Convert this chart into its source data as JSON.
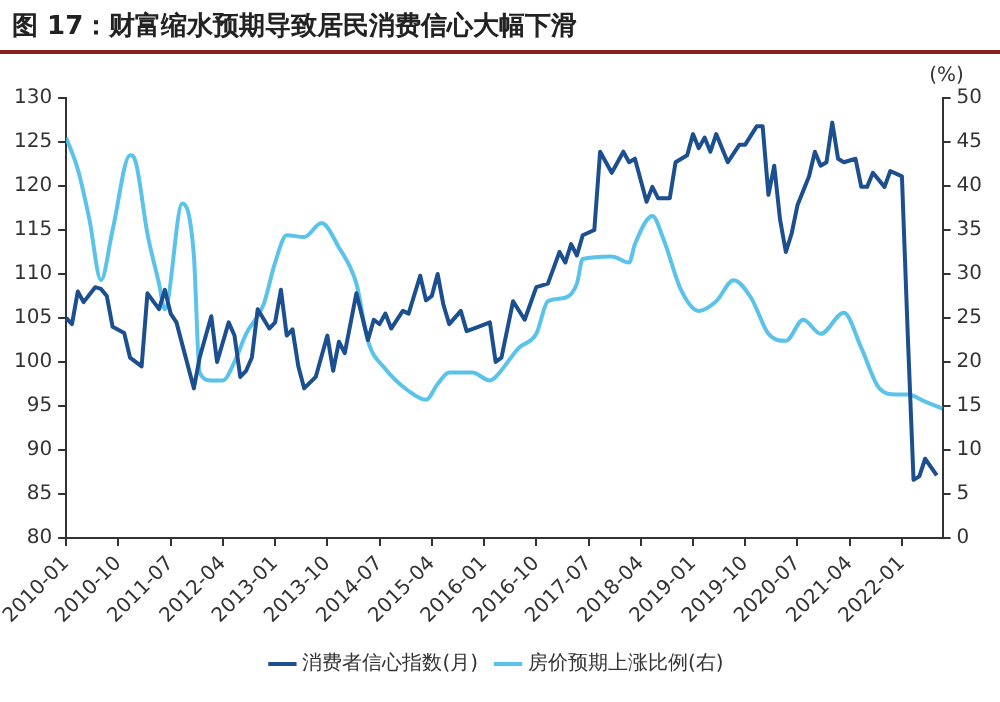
{
  "chart_data": {
    "type": "line",
    "title": "图 17：财富缩水预期导致居民消费信心大幅下滑",
    "y2label": "(%)",
    "xlim": [
      "2010-01",
      "2022-08"
    ],
    "xticks": [
      "2010-01",
      "2010-10",
      "2011-07",
      "2012-04",
      "2013-01",
      "2013-10",
      "2014-07",
      "2015-04",
      "2016-01",
      "2016-10",
      "2017-07",
      "2018-04",
      "2019-01",
      "2019-10",
      "2020-07",
      "2021-04",
      "2022-01"
    ],
    "ylim": [
      80,
      130
    ],
    "yticks": [
      80,
      85,
      90,
      95,
      100,
      105,
      110,
      115,
      120,
      125,
      130
    ],
    "y2lim": [
      0,
      50
    ],
    "y2ticks": [
      0,
      5,
      10,
      15,
      20,
      25,
      30,
      35,
      40,
      45,
      50
    ],
    "grid": false,
    "legend": "bottom",
    "marker": "none",
    "line_style": "solid",
    "series": [
      {
        "name": "消费者信心指数(月)",
        "color": "#1c4f8f",
        "x": [
          "2010-01",
          "2010-02",
          "2010-03",
          "2010-04",
          "2010-06",
          "2010-07",
          "2010-08",
          "2010-09",
          "2010-11",
          "2010-12",
          "2011-02",
          "2011-03",
          "2011-05",
          "2011-06",
          "2011-07",
          "2011-08",
          "2011-09",
          "2011-11",
          "2011-12",
          "2012-02",
          "2012-03",
          "2012-05",
          "2012-06",
          "2012-07",
          "2012-08",
          "2012-09",
          "2012-10",
          "2012-12",
          "2013-01",
          "2013-02",
          "2013-03",
          "2013-04",
          "2013-05",
          "2013-06",
          "2013-08",
          "2013-10",
          "2013-11",
          "2013-12",
          "2014-01",
          "2014-03",
          "2014-05",
          "2014-06",
          "2014-07",
          "2014-08",
          "2014-09",
          "2014-11",
          "2014-12",
          "2015-02",
          "2015-03",
          "2015-04",
          "2015-05",
          "2015-06",
          "2015-07",
          "2015-09",
          "2015-10",
          "2015-12",
          "2016-02",
          "2016-03",
          "2016-04",
          "2016-06",
          "2016-08",
          "2016-10",
          "2016-12",
          "2017-02",
          "2017-03",
          "2017-04",
          "2017-05",
          "2017-06",
          "2017-08",
          "2017-09",
          "2017-11",
          "2017-12",
          "2018-01",
          "2018-02",
          "2018-03",
          "2018-05",
          "2018-06",
          "2018-07",
          "2018-09",
          "2018-10",
          "2018-12",
          "2019-01",
          "2019-02",
          "2019-03",
          "2019-04",
          "2019-05",
          "2019-07",
          "2019-09",
          "2019-10",
          "2019-12",
          "2020-01",
          "2020-02",
          "2020-03",
          "2020-04",
          "2020-05",
          "2020-06",
          "2020-07",
          "2020-09",
          "2020-10",
          "2020-11",
          "2020-12",
          "2021-01",
          "2021-02",
          "2021-03",
          "2021-05",
          "2021-06",
          "2021-07",
          "2021-08",
          "2021-10",
          "2021-11",
          "2022-01",
          "2022-02",
          "2022-03",
          "2022-04",
          "2022-05",
          "2022-07"
        ],
        "values": [
          105,
          104.3,
          108,
          106.8,
          108.5,
          108.3,
          107.5,
          104,
          103.3,
          100.5,
          99.5,
          107.8,
          106,
          108.2,
          105.5,
          104.5,
          102,
          97,
          100.5,
          105.2,
          100,
          104.5,
          103,
          98.3,
          99,
          100.5,
          106,
          103.8,
          104.5,
          108.2,
          103,
          103.7,
          99.5,
          97,
          98.3,
          103,
          99,
          102.3,
          101,
          107.8,
          102.5,
          104.8,
          104.3,
          105.5,
          103.8,
          105.8,
          105.5,
          109.8,
          107,
          107.5,
          110,
          106.5,
          104.3,
          105.8,
          103.5,
          104,
          104.5,
          100,
          100.5,
          106.9,
          104.8,
          108.5,
          108.9,
          112.5,
          111.3,
          113.4,
          112.1,
          114.4,
          115,
          123.9,
          121.5,
          122.7,
          123.9,
          122.7,
          123.1,
          118.2,
          119.9,
          118.6,
          118.6,
          122.7,
          123.5,
          125.9,
          124.3,
          125.5,
          123.9,
          125.9,
          122.7,
          124.7,
          124.7,
          126.8,
          126.8,
          119,
          122.3,
          116.2,
          112.5,
          114.6,
          117.8,
          121.1,
          123.9,
          122.3,
          122.7,
          127.2,
          123.1,
          122.7,
          123.1,
          119.9,
          119.9,
          121.5,
          119.9,
          121.7,
          121.1,
          103.2,
          86.6,
          87,
          89,
          87.1
        ]
      },
      {
        "name": "房价预期上涨比例(右)",
        "color": "#5bc3ea",
        "axis": "y2",
        "x": [
          "2010-01",
          "2010-03",
          "2010-05",
          "2010-07",
          "2010-09",
          "2010-12",
          "2011-01",
          "2011-03",
          "2011-05",
          "2011-06",
          "2011-09",
          "2011-11",
          "2011-12",
          "2012-02",
          "2012-04",
          "2012-06",
          "2012-08",
          "2012-11",
          "2013-01",
          "2013-03",
          "2013-06",
          "2013-09",
          "2013-12",
          "2014-03",
          "2014-05",
          "2014-08",
          "2014-12",
          "2015-03",
          "2015-05",
          "2015-07",
          "2015-11",
          "2016-02",
          "2016-03",
          "2016-07",
          "2016-10",
          "2016-12",
          "2017-03",
          "2017-05",
          "2017-06",
          "2017-11",
          "2018-02",
          "2018-03",
          "2018-06",
          "2018-08",
          "2018-11",
          "2019-02",
          "2019-05",
          "2019-08",
          "2019-11",
          "2020-02",
          "2020-05",
          "2020-08",
          "2020-11",
          "2021-03",
          "2021-06",
          "2021-09",
          "2021-12",
          "2022-02",
          "2022-05",
          "2022-08"
        ],
        "values": [
          45.5,
          41.9,
          36.2,
          29.3,
          35,
          43.5,
          42.7,
          34.6,
          28.9,
          26,
          38,
          32.1,
          18.8,
          17.9,
          17.9,
          20,
          23.2,
          26.5,
          31.3,
          34.4,
          34.2,
          35.8,
          33,
          28.9,
          22.4,
          19.2,
          16.7,
          15.7,
          17.5,
          18.8,
          18.8,
          17.9,
          18.3,
          21.6,
          23.2,
          26.9,
          27.3,
          28.9,
          31.7,
          32,
          31.3,
          33.4,
          36.6,
          33.8,
          28.1,
          25.8,
          26.9,
          29.3,
          27.3,
          23.2,
          22.4,
          24.8,
          23.2,
          25.6,
          21.6,
          17.1,
          16.3,
          16.3,
          15.5,
          14.7
        ]
      }
    ]
  }
}
